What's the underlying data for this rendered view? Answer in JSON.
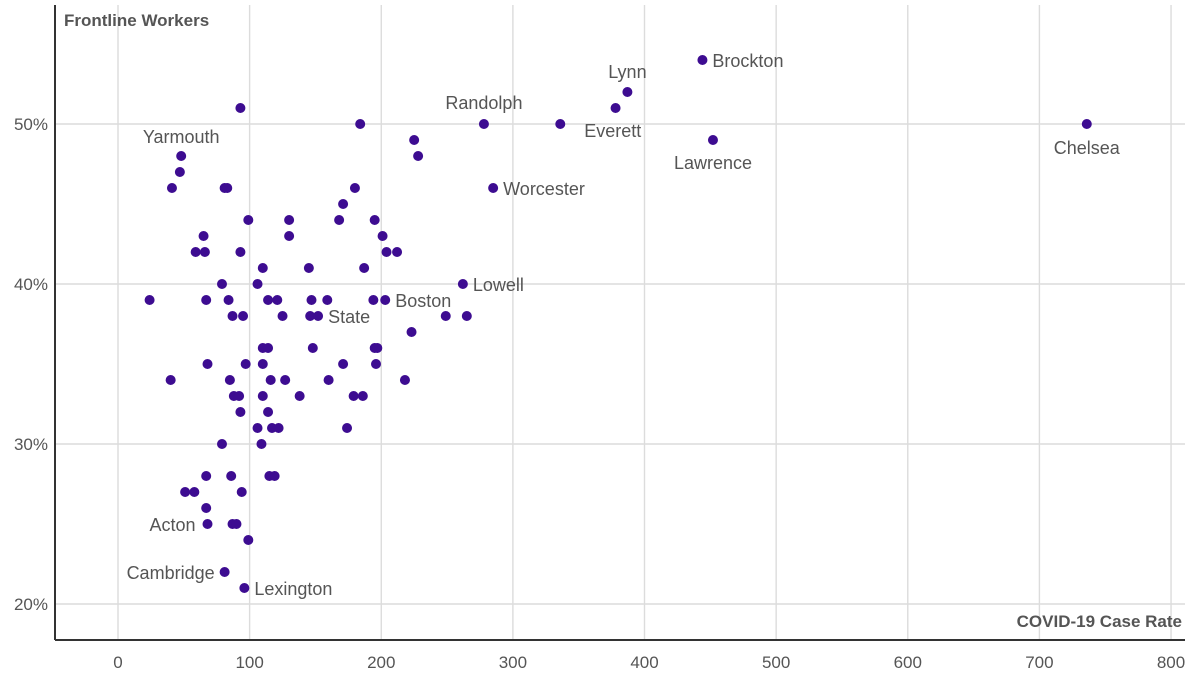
{
  "chart_data": {
    "type": "scatter",
    "title": "",
    "ylabel": "Frontline Workers",
    "xlabel": "COVID-19 Case Rate",
    "xlim": [
      0,
      800
    ],
    "ylim": [
      20,
      56
    ],
    "x_ticks": [
      0,
      100,
      200,
      300,
      400,
      500,
      600,
      700,
      800
    ],
    "y_ticks": [
      20,
      30,
      40,
      50
    ],
    "y_tick_labels": [
      "20%",
      "30%",
      "40%",
      "50%"
    ],
    "grid": true,
    "point_color": "#3d0c91",
    "points": [
      {
        "x": 736,
        "y": 50,
        "label": "Chelsea"
      },
      {
        "x": 444,
        "y": 54,
        "label": "Brockton"
      },
      {
        "x": 387,
        "y": 52,
        "label": "Lynn"
      },
      {
        "x": 378,
        "y": 51
      },
      {
        "x": 336,
        "y": 50,
        "label": "Everett"
      },
      {
        "x": 452,
        "y": 49,
        "label": "Lawrence"
      },
      {
        "x": 278,
        "y": 50,
        "label": "Randolph"
      },
      {
        "x": 285,
        "y": 46,
        "label": "Worcester"
      },
      {
        "x": 262,
        "y": 40,
        "label": "Lowell"
      },
      {
        "x": 203,
        "y": 39,
        "label": "Boston"
      },
      {
        "x": 152,
        "y": 38,
        "label": "State"
      },
      {
        "x": 48,
        "y": 48,
        "label": "Yarmouth"
      },
      {
        "x": 68,
        "y": 25,
        "label": "Acton"
      },
      {
        "x": 81,
        "y": 22,
        "label": "Cambridge"
      },
      {
        "x": 96,
        "y": 21,
        "label": "Lexington"
      },
      {
        "x": 93,
        "y": 51
      },
      {
        "x": 184,
        "y": 50
      },
      {
        "x": 225,
        "y": 49
      },
      {
        "x": 228,
        "y": 48
      },
      {
        "x": 47,
        "y": 47
      },
      {
        "x": 41,
        "y": 46
      },
      {
        "x": 81,
        "y": 46
      },
      {
        "x": 83,
        "y": 46
      },
      {
        "x": 180,
        "y": 46
      },
      {
        "x": 171,
        "y": 45
      },
      {
        "x": 99,
        "y": 44
      },
      {
        "x": 130,
        "y": 44
      },
      {
        "x": 168,
        "y": 44
      },
      {
        "x": 195,
        "y": 44
      },
      {
        "x": 65,
        "y": 43
      },
      {
        "x": 130,
        "y": 43
      },
      {
        "x": 201,
        "y": 43
      },
      {
        "x": 59,
        "y": 42
      },
      {
        "x": 66,
        "y": 42
      },
      {
        "x": 93,
        "y": 42
      },
      {
        "x": 204,
        "y": 42
      },
      {
        "x": 212,
        "y": 42
      },
      {
        "x": 110,
        "y": 41
      },
      {
        "x": 145,
        "y": 41
      },
      {
        "x": 187,
        "y": 41
      },
      {
        "x": 79,
        "y": 40
      },
      {
        "x": 106,
        "y": 40
      },
      {
        "x": 24,
        "y": 39
      },
      {
        "x": 67,
        "y": 39
      },
      {
        "x": 84,
        "y": 39
      },
      {
        "x": 114,
        "y": 39
      },
      {
        "x": 121,
        "y": 39
      },
      {
        "x": 147,
        "y": 39
      },
      {
        "x": 159,
        "y": 39
      },
      {
        "x": 194,
        "y": 39
      },
      {
        "x": 87,
        "y": 38
      },
      {
        "x": 95,
        "y": 38
      },
      {
        "x": 125,
        "y": 38
      },
      {
        "x": 146,
        "y": 38
      },
      {
        "x": 249,
        "y": 38
      },
      {
        "x": 265,
        "y": 38
      },
      {
        "x": 223,
        "y": 37
      },
      {
        "x": 110,
        "y": 36
      },
      {
        "x": 114,
        "y": 36
      },
      {
        "x": 148,
        "y": 36
      },
      {
        "x": 195,
        "y": 36
      },
      {
        "x": 197,
        "y": 36
      },
      {
        "x": 68,
        "y": 35
      },
      {
        "x": 97,
        "y": 35
      },
      {
        "x": 110,
        "y": 35
      },
      {
        "x": 171,
        "y": 35
      },
      {
        "x": 196,
        "y": 35
      },
      {
        "x": 40,
        "y": 34
      },
      {
        "x": 85,
        "y": 34
      },
      {
        "x": 116,
        "y": 34
      },
      {
        "x": 127,
        "y": 34
      },
      {
        "x": 160,
        "y": 34
      },
      {
        "x": 218,
        "y": 34
      },
      {
        "x": 88,
        "y": 33
      },
      {
        "x": 92,
        "y": 33
      },
      {
        "x": 110,
        "y": 33
      },
      {
        "x": 138,
        "y": 33
      },
      {
        "x": 179,
        "y": 33
      },
      {
        "x": 186,
        "y": 33
      },
      {
        "x": 93,
        "y": 32
      },
      {
        "x": 114,
        "y": 32
      },
      {
        "x": 106,
        "y": 31
      },
      {
        "x": 117,
        "y": 31
      },
      {
        "x": 122,
        "y": 31
      },
      {
        "x": 174,
        "y": 31
      },
      {
        "x": 79,
        "y": 30
      },
      {
        "x": 109,
        "y": 30
      },
      {
        "x": 67,
        "y": 28
      },
      {
        "x": 86,
        "y": 28
      },
      {
        "x": 115,
        "y": 28
      },
      {
        "x": 119,
        "y": 28
      },
      {
        "x": 51,
        "y": 27
      },
      {
        "x": 58,
        "y": 27
      },
      {
        "x": 94,
        "y": 27
      },
      {
        "x": 67,
        "y": 26
      },
      {
        "x": 87,
        "y": 25
      },
      {
        "x": 90,
        "y": 25
      },
      {
        "x": 99,
        "y": 24
      }
    ]
  }
}
